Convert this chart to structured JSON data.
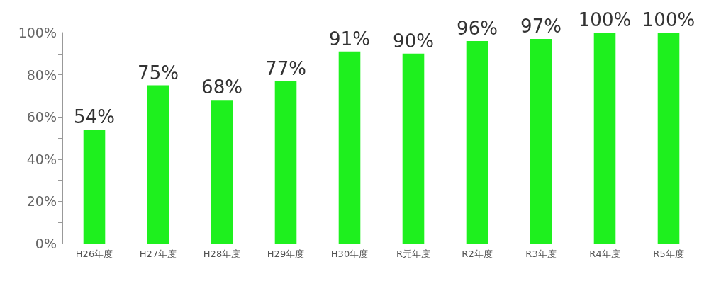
{
  "chart_data": {
    "type": "bar",
    "categories": [
      "H26年度",
      "H27年度",
      "H28年度",
      "H29年度",
      "H30年度",
      "R元年度",
      "R2年度",
      "R3年度",
      "R4年度",
      "R5年度"
    ],
    "values": [
      54,
      75,
      68,
      77,
      91,
      90,
      96,
      97,
      100,
      100
    ],
    "value_labels": [
      "54%",
      "75%",
      "68%",
      "77%",
      "91%",
      "90%",
      "96%",
      "97%",
      "100%",
      "100%"
    ],
    "color": "#1ef01e",
    "ylim": [
      0,
      100
    ],
    "yticks": [
      {
        "value": 0,
        "label": "0%"
      },
      {
        "value": 10,
        "label": null
      },
      {
        "value": 20,
        "label": "20%"
      },
      {
        "value": 30,
        "label": null
      },
      {
        "value": 40,
        "label": "40%"
      },
      {
        "value": 50,
        "label": null
      },
      {
        "value": 60,
        "label": "60%"
      },
      {
        "value": 70,
        "label": null
      },
      {
        "value": 80,
        "label": "80%"
      },
      {
        "value": 90,
        "label": null
      },
      {
        "value": 100,
        "label": "100%"
      }
    ],
    "grid": false
  }
}
